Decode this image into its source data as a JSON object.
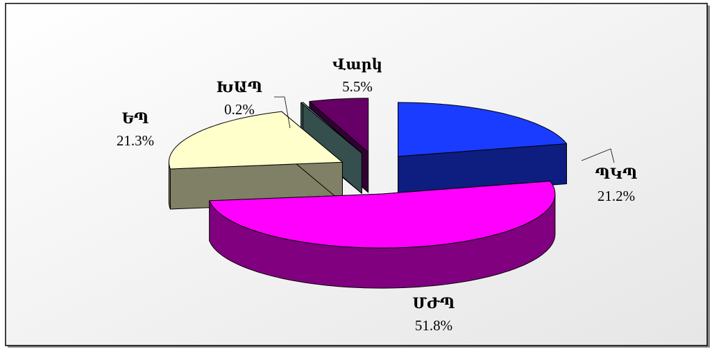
{
  "chart_data": {
    "type": "pie",
    "categories": [
      "ՊԿՊ",
      "ՄԺՊ",
      "ԵՊ",
      "ԽԱՊ",
      "Վարկ"
    ],
    "values": [
      21.2,
      51.8,
      21.3,
      0.2,
      5.5
    ],
    "value_labels": [
      "21.2%",
      "51.8%",
      "21.3%",
      "0.2%",
      "5.5%"
    ],
    "colors": [
      "#1a3cff",
      "#ff00ff",
      "#ffffcc",
      "#6a9c9c",
      "#660066"
    ]
  }
}
